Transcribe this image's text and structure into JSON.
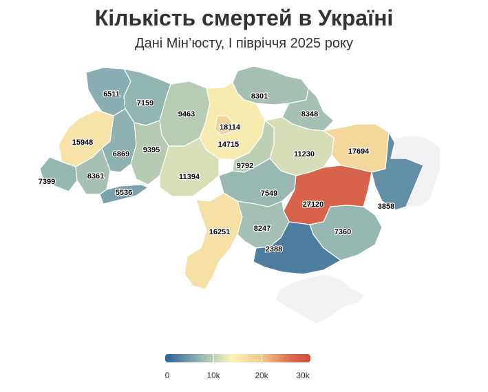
{
  "title": "Кількість смертей в Україні",
  "subtitle": "Дані Мін’юсту, І півріччя 2025 року",
  "colors": {
    "low": "#2b6396",
    "mid_low": "#8aafb1",
    "mid": "#f8f4b8",
    "mid_high": "#f2c98c",
    "high": "#cf4a3c",
    "no_data": "#f2f2f4"
  },
  "legend": {
    "ticks": [
      "0",
      "10k",
      "20k",
      "30k"
    ],
    "min": 0,
    "max": 30000
  },
  "regions": [
    {
      "name": "volyn",
      "value": 6511,
      "label": "6511"
    },
    {
      "name": "rivne",
      "value": 7159,
      "label": "7159"
    },
    {
      "name": "zhytomyr",
      "value": 9463,
      "label": "9463"
    },
    {
      "name": "kyiv-city",
      "value": 18114,
      "label": "18114"
    },
    {
      "name": "kyiv-oblast",
      "value": 14715,
      "label": "14715"
    },
    {
      "name": "chernihiv",
      "value": 8301,
      "label": "8301"
    },
    {
      "name": "sumy",
      "value": 8348,
      "label": "8348"
    },
    {
      "name": "lviv",
      "value": 15948,
      "label": "15948"
    },
    {
      "name": "ternopil",
      "value": 6869,
      "label": "6869"
    },
    {
      "name": "khmelnytskyi",
      "value": 9395,
      "label": "9395"
    },
    {
      "name": "cherkasy",
      "value": 9792,
      "label": "9792"
    },
    {
      "name": "poltava",
      "value": 11230,
      "label": "11230"
    },
    {
      "name": "kharkiv",
      "value": 17694,
      "label": "17694"
    },
    {
      "name": "zakarpattia",
      "value": 7399,
      "label": "7399"
    },
    {
      "name": "ivano-frankivsk",
      "value": 8361,
      "label": "8361"
    },
    {
      "name": "chernivtsi",
      "value": 5536,
      "label": "5536"
    },
    {
      "name": "vinnytsia",
      "value": 11394,
      "label": "11394"
    },
    {
      "name": "kirovohrad",
      "value": 7549,
      "label": "7549"
    },
    {
      "name": "dnipropetrovsk",
      "value": 27120,
      "label": "27120"
    },
    {
      "name": "luhansk",
      "value": 3858,
      "label": "3858"
    },
    {
      "name": "odesa",
      "value": 16251,
      "label": "16251"
    },
    {
      "name": "mykolaiv",
      "value": 8247,
      "label": "8247"
    },
    {
      "name": "zaporizhzhia",
      "value": 7360,
      "label": "7360"
    },
    {
      "name": "kherson",
      "value": 2388,
      "label": "2388"
    },
    {
      "name": "donetsk",
      "value": null,
      "label": ""
    },
    {
      "name": "crimea",
      "value": null,
      "label": ""
    }
  ]
}
